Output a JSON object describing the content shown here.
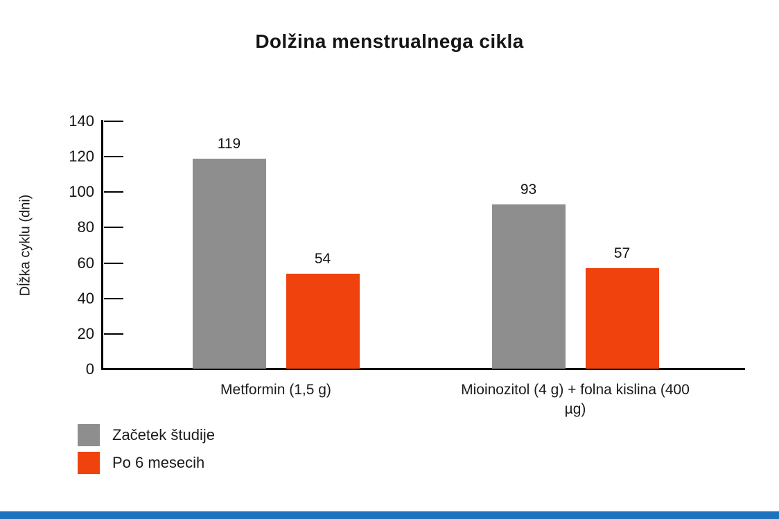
{
  "title": "Dolžina menstrualnega cikla",
  "footer": {
    "accent_color": "#1E73BE"
  },
  "chart_data": {
    "type": "bar",
    "title": "Dolžina menstrualnega cikla",
    "xlabel": "",
    "ylabel": "Dĺžka cyklu (dni)",
    "ylim": [
      0,
      140
    ],
    "yticks": [
      0,
      20,
      40,
      60,
      80,
      100,
      120,
      140
    ],
    "grid": false,
    "value_labels_shown": true,
    "legend_position": "bottom-left",
    "categories": [
      "Metformin (1,5 g)",
      "Mioinozitol (4 g) + folna kislina (400 µg)"
    ],
    "series": [
      {
        "name": "Začetek študije",
        "color": "#8E8E8E",
        "values": [
          119,
          93
        ]
      },
      {
        "name": "Po 6 mesecih",
        "color": "#EF420D",
        "values": [
          54,
          57
        ]
      }
    ],
    "axis_color": "#000000",
    "text_color": "#1A1A1A"
  }
}
